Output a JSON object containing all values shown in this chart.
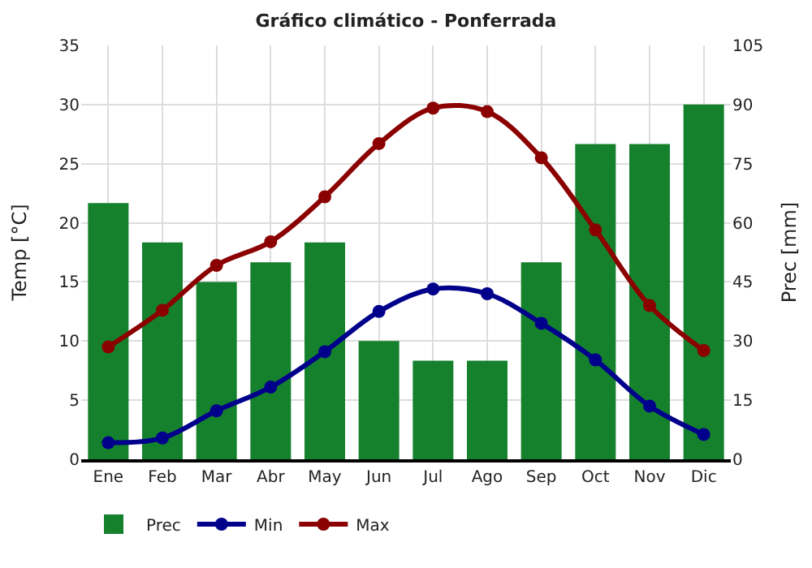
{
  "chart_data": {
    "type": "bar",
    "title": "Gráfico climático - Ponferrada",
    "ylabel": "Temp [°C]",
    "y2label": "Prec [mm]",
    "categories": [
      "Ene",
      "Feb",
      "Mar",
      "Abr",
      "May",
      "Jun",
      "Jul",
      "Ago",
      "Sep",
      "Oct",
      "Nov",
      "Dic"
    ],
    "series": [
      {
        "name": "Prec",
        "axis": "y2",
        "color": "#15812d",
        "values": [
          65,
          55,
          45,
          50,
          55,
          30,
          25,
          25,
          50,
          80,
          80,
          90
        ]
      },
      {
        "name": "Min",
        "type": "line",
        "color": "#00008b",
        "values": [
          1.4,
          1.8,
          4.1,
          6.1,
          9.1,
          12.5,
          14.4,
          14.0,
          11.5,
          8.4,
          4.5,
          2.1
        ]
      },
      {
        "name": "Max",
        "type": "line",
        "color": "#8b0000",
        "values": [
          9.5,
          12.6,
          16.4,
          18.4,
          22.2,
          26.7,
          29.7,
          29.4,
          25.5,
          19.4,
          13.0,
          9.2
        ]
      }
    ],
    "ylim": [
      0,
      35
    ],
    "yticks": [
      0,
      5,
      10,
      15,
      20,
      25,
      30,
      35
    ],
    "y2lim": [
      0,
      105
    ],
    "y2ticks": [
      0,
      15,
      30,
      45,
      60,
      75,
      90,
      105
    ],
    "grid": true,
    "legend": "bottom",
    "marker": "circle",
    "line_style": "solid"
  }
}
